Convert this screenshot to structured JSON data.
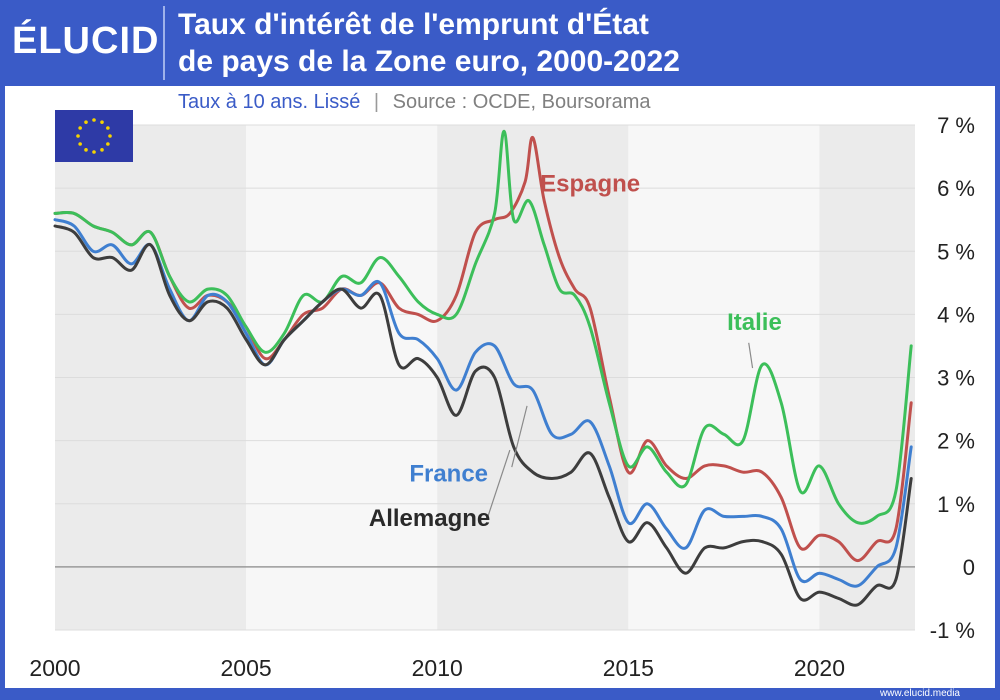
{
  "brand": "ÉLUCID",
  "header": {
    "title_line1": "Taux d'intérêt de l'emprunt d'État",
    "title_line2": "de pays de la Zone euro, 2000-2022",
    "subtitle": "Taux à 10 ans. Lissé",
    "separator": "|",
    "source": "Source : OCDE, Boursorama"
  },
  "footer": {
    "url": "www.elucid.media"
  },
  "flag": {
    "name": "eu-flag-icon",
    "color": "#2e3aa6",
    "star_color": "#f5d300"
  },
  "colors": {
    "Espagne": "#c0504d",
    "Italie": "#3cbf5a",
    "France": "#3f7fd0",
    "Allemagne": "#3d3d3d",
    "negative_tick": "#e02020"
  },
  "chart_data": {
    "type": "line",
    "title": "",
    "xlabel": "",
    "ylabel": "",
    "xlim": [
      2000,
      2022.5
    ],
    "ylim": [
      -1,
      7
    ],
    "x_ticks": [
      2000,
      2005,
      2010,
      2015,
      2020
    ],
    "x_tick_labels": [
      "2000",
      "2005",
      "2010",
      "2015",
      "2020"
    ],
    "y_ticks": [
      7,
      6,
      5,
      4,
      3,
      2,
      1,
      0,
      -1
    ],
    "y_tick_labels": [
      "7 %",
      "6 %",
      "5 %",
      "4 %",
      "3 %",
      "2 %",
      "1 %",
      "0",
      "-1 %"
    ],
    "grid": "horizontal",
    "series": [
      {
        "name": "Espagne",
        "points": [
          [
            2000,
            5.6
          ],
          [
            2000.5,
            5.6
          ],
          [
            2001,
            5.4
          ],
          [
            2001.5,
            5.3
          ],
          [
            2002,
            5.1
          ],
          [
            2002.5,
            5.3
          ],
          [
            2003,
            4.6
          ],
          [
            2003.5,
            4.1
          ],
          [
            2004,
            4.3
          ],
          [
            2004.5,
            4.2
          ],
          [
            2005,
            3.8
          ],
          [
            2005.5,
            3.3
          ],
          [
            2006,
            3.6
          ],
          [
            2006.5,
            4.0
          ],
          [
            2007,
            4.1
          ],
          [
            2007.5,
            4.4
          ],
          [
            2008,
            4.3
          ],
          [
            2008.5,
            4.5
          ],
          [
            2009,
            4.1
          ],
          [
            2009.5,
            4.0
          ],
          [
            2010,
            3.9
          ],
          [
            2010.5,
            4.3
          ],
          [
            2011,
            5.3
          ],
          [
            2011.5,
            5.5
          ],
          [
            2011.9,
            5.6
          ],
          [
            2012.3,
            6.1
          ],
          [
            2012.5,
            6.8
          ],
          [
            2012.8,
            5.8
          ],
          [
            2013.2,
            4.9
          ],
          [
            2013.6,
            4.4
          ],
          [
            2014,
            4.1
          ],
          [
            2014.5,
            2.7
          ],
          [
            2015,
            1.5
          ],
          [
            2015.5,
            2.0
          ],
          [
            2016,
            1.6
          ],
          [
            2016.5,
            1.4
          ],
          [
            2017,
            1.6
          ],
          [
            2017.5,
            1.6
          ],
          [
            2018,
            1.5
          ],
          [
            2018.5,
            1.5
          ],
          [
            2019,
            1.1
          ],
          [
            2019.5,
            0.3
          ],
          [
            2020,
            0.5
          ],
          [
            2020.5,
            0.4
          ],
          [
            2021,
            0.1
          ],
          [
            2021.5,
            0.4
          ],
          [
            2022,
            0.6
          ],
          [
            2022.4,
            2.6
          ]
        ]
      },
      {
        "name": "Italie",
        "points": [
          [
            2000,
            5.6
          ],
          [
            2000.5,
            5.6
          ],
          [
            2001,
            5.4
          ],
          [
            2001.5,
            5.3
          ],
          [
            2002,
            5.1
          ],
          [
            2002.5,
            5.3
          ],
          [
            2003,
            4.6
          ],
          [
            2003.5,
            4.2
          ],
          [
            2004,
            4.4
          ],
          [
            2004.5,
            4.3
          ],
          [
            2005,
            3.8
          ],
          [
            2005.5,
            3.4
          ],
          [
            2006,
            3.7
          ],
          [
            2006.5,
            4.3
          ],
          [
            2007,
            4.2
          ],
          [
            2007.5,
            4.6
          ],
          [
            2008,
            4.5
          ],
          [
            2008.5,
            4.9
          ],
          [
            2009,
            4.6
          ],
          [
            2009.5,
            4.2
          ],
          [
            2010,
            4.0
          ],
          [
            2010.5,
            4.0
          ],
          [
            2011,
            4.8
          ],
          [
            2011.5,
            5.6
          ],
          [
            2011.75,
            6.9
          ],
          [
            2012,
            5.5
          ],
          [
            2012.4,
            5.8
          ],
          [
            2012.8,
            5.1
          ],
          [
            2013.2,
            4.4
          ],
          [
            2013.6,
            4.3
          ],
          [
            2014,
            3.8
          ],
          [
            2014.5,
            2.6
          ],
          [
            2015,
            1.6
          ],
          [
            2015.5,
            1.9
          ],
          [
            2016,
            1.5
          ],
          [
            2016.5,
            1.3
          ],
          [
            2017,
            2.2
          ],
          [
            2017.5,
            2.1
          ],
          [
            2018,
            2.0
          ],
          [
            2018.5,
            3.2
          ],
          [
            2019,
            2.6
          ],
          [
            2019.5,
            1.2
          ],
          [
            2020,
            1.6
          ],
          [
            2020.5,
            1.0
          ],
          [
            2021,
            0.7
          ],
          [
            2021.5,
            0.8
          ],
          [
            2022,
            1.2
          ],
          [
            2022.4,
            3.5
          ]
        ]
      },
      {
        "name": "France",
        "points": [
          [
            2000,
            5.5
          ],
          [
            2000.5,
            5.4
          ],
          [
            2001,
            5.0
          ],
          [
            2001.5,
            5.1
          ],
          [
            2002,
            4.8
          ],
          [
            2002.5,
            5.1
          ],
          [
            2003,
            4.4
          ],
          [
            2003.5,
            3.9
          ],
          [
            2004,
            4.3
          ],
          [
            2004.5,
            4.2
          ],
          [
            2005,
            3.7
          ],
          [
            2005.5,
            3.2
          ],
          [
            2006,
            3.6
          ],
          [
            2006.5,
            3.9
          ],
          [
            2007,
            4.2
          ],
          [
            2007.5,
            4.4
          ],
          [
            2008,
            4.3
          ],
          [
            2008.5,
            4.5
          ],
          [
            2009,
            3.7
          ],
          [
            2009.5,
            3.6
          ],
          [
            2010,
            3.3
          ],
          [
            2010.5,
            2.8
          ],
          [
            2011,
            3.4
          ],
          [
            2011.5,
            3.5
          ],
          [
            2012,
            2.9
          ],
          [
            2012.5,
            2.8
          ],
          [
            2013,
            2.1
          ],
          [
            2013.5,
            2.1
          ],
          [
            2014,
            2.3
          ],
          [
            2014.5,
            1.6
          ],
          [
            2015,
            0.7
          ],
          [
            2015.5,
            1.0
          ],
          [
            2016,
            0.6
          ],
          [
            2016.5,
            0.3
          ],
          [
            2017,
            0.9
          ],
          [
            2017.5,
            0.8
          ],
          [
            2018,
            0.8
          ],
          [
            2018.5,
            0.8
          ],
          [
            2019,
            0.6
          ],
          [
            2019.5,
            -0.2
          ],
          [
            2020,
            -0.1
          ],
          [
            2020.5,
            -0.2
          ],
          [
            2021,
            -0.3
          ],
          [
            2021.5,
            0.0
          ],
          [
            2022,
            0.3
          ],
          [
            2022.4,
            1.9
          ]
        ]
      },
      {
        "name": "Allemagne",
        "points": [
          [
            2000,
            5.4
          ],
          [
            2000.5,
            5.3
          ],
          [
            2001,
            4.9
          ],
          [
            2001.5,
            4.9
          ],
          [
            2002,
            4.7
          ],
          [
            2002.5,
            5.1
          ],
          [
            2003,
            4.3
          ],
          [
            2003.5,
            3.9
          ],
          [
            2004,
            4.2
          ],
          [
            2004.5,
            4.1
          ],
          [
            2005,
            3.6
          ],
          [
            2005.5,
            3.2
          ],
          [
            2006,
            3.6
          ],
          [
            2006.5,
            3.9
          ],
          [
            2007,
            4.2
          ],
          [
            2007.5,
            4.4
          ],
          [
            2008,
            4.1
          ],
          [
            2008.5,
            4.3
          ],
          [
            2009,
            3.2
          ],
          [
            2009.5,
            3.3
          ],
          [
            2010,
            3.0
          ],
          [
            2010.5,
            2.4
          ],
          [
            2011,
            3.1
          ],
          [
            2011.5,
            3.0
          ],
          [
            2012,
            1.9
          ],
          [
            2012.5,
            1.5
          ],
          [
            2013,
            1.4
          ],
          [
            2013.5,
            1.5
          ],
          [
            2014,
            1.8
          ],
          [
            2014.5,
            1.1
          ],
          [
            2015,
            0.4
          ],
          [
            2015.5,
            0.7
          ],
          [
            2016,
            0.3
          ],
          [
            2016.5,
            -0.1
          ],
          [
            2017,
            0.3
          ],
          [
            2017.5,
            0.3
          ],
          [
            2018,
            0.4
          ],
          [
            2018.5,
            0.4
          ],
          [
            2019,
            0.2
          ],
          [
            2019.5,
            -0.5
          ],
          [
            2020,
            -0.4
          ],
          [
            2020.5,
            -0.5
          ],
          [
            2021,
            -0.6
          ],
          [
            2021.5,
            -0.3
          ],
          [
            2022,
            -0.2
          ],
          [
            2022.4,
            1.4
          ]
        ]
      }
    ],
    "labels": [
      {
        "series": "Espagne",
        "text": "Espagne",
        "x": 2014.0,
        "y": 5.95
      },
      {
        "series": "Italie",
        "text": "Italie",
        "x": 2018.3,
        "y": 3.75
      },
      {
        "series": "France",
        "text": "France",
        "x": 2010.3,
        "y": 1.35
      },
      {
        "series": "Allemagne",
        "text": "Allemagne",
        "x": 2009.8,
        "y": 0.65
      }
    ]
  }
}
